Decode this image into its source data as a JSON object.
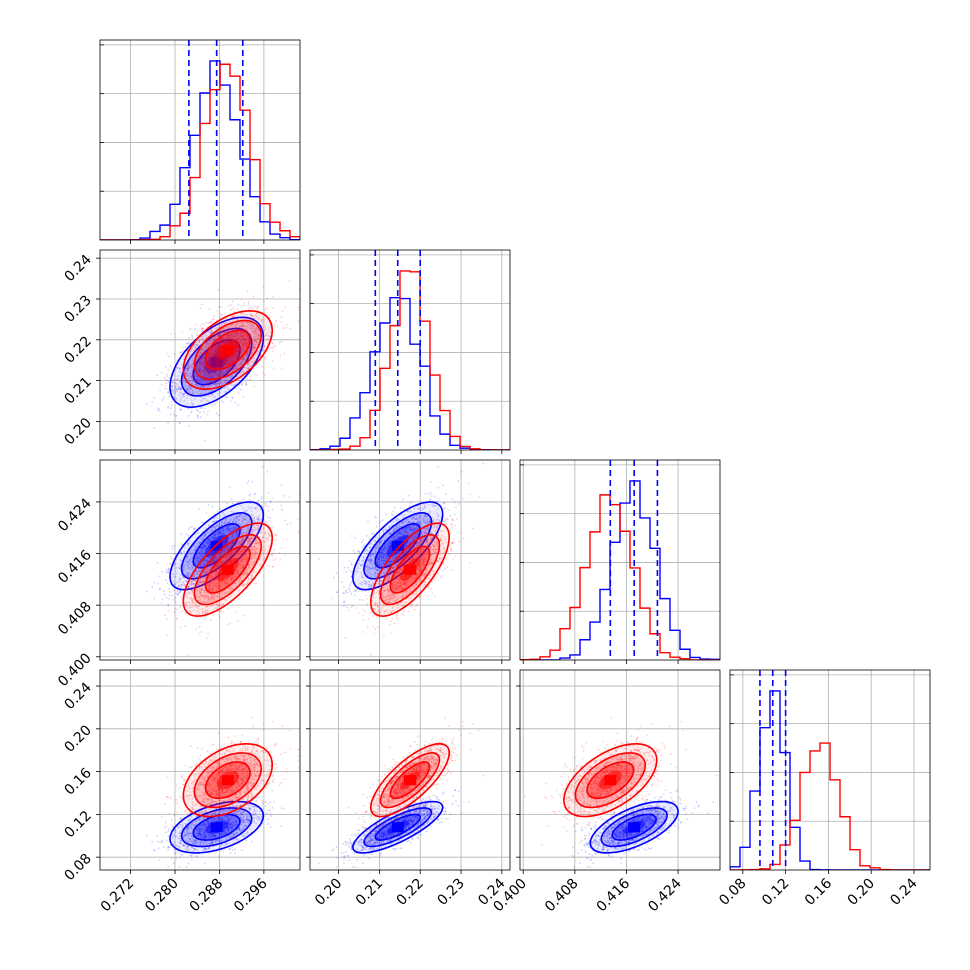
{
  "chart_data": {
    "type": "corner",
    "parameters": [
      {
        "range": [
          0.2665,
          0.3025
        ],
        "ticks": [
          "0.272",
          "0.280",
          "0.288",
          "0.296"
        ],
        "tick_values": [
          0.272,
          0.28,
          0.288,
          0.296
        ]
      },
      {
        "range": [
          0.193,
          0.242
        ],
        "ticks": [
          "0.20",
          "0.21",
          "0.22",
          "0.23",
          "0.24"
        ],
        "tick_values": [
          0.2,
          0.21,
          0.22,
          0.23,
          0.24
        ]
      },
      {
        "range": [
          0.3995,
          0.4305
        ],
        "ticks": [
          "0.400",
          "0.408",
          "0.416",
          "0.424"
        ],
        "tick_values": [
          0.4,
          0.408,
          0.416,
          0.424
        ]
      },
      {
        "range": [
          0.068,
          0.255
        ],
        "ticks": [
          "0.08",
          "0.12",
          "0.16",
          "0.20",
          "0.24"
        ],
        "tick_values": [
          0.08,
          0.12,
          0.16,
          0.2,
          0.24
        ]
      }
    ],
    "series": [
      {
        "color": "#0000ff",
        "mean": [
          0.2875,
          0.2145,
          0.4172,
          0.108
        ],
        "std": [
          0.0042,
          0.0055,
          0.0034,
          0.012
        ],
        "corr": [
          [
            1,
            0.55,
            0.7,
            0.45
          ],
          [
            0.55,
            1,
            0.72,
            0.78
          ],
          [
            0.7,
            0.72,
            1,
            0.62
          ],
          [
            0.45,
            0.78,
            0.62,
            1
          ]
        ],
        "quantiles": [
          [
            0.2825,
            0.2875,
            0.2922
          ],
          [
            0.209,
            0.2145,
            0.22
          ],
          [
            0.4135,
            0.4172,
            0.4208
          ],
          [
            0.096,
            0.108,
            0.12
          ]
        ]
      },
      {
        "color": "#ff0000",
        "mean": [
          0.2895,
          0.2175,
          0.4135,
          0.152
        ],
        "std": [
          0.004,
          0.0048,
          0.0036,
          0.017
        ],
        "corr": [
          [
            1,
            0.5,
            0.68,
            0.42
          ],
          [
            0.5,
            1,
            0.7,
            0.75
          ],
          [
            0.68,
            0.7,
            1,
            0.55
          ],
          [
            0.42,
            0.75,
            0.55,
            1
          ]
        ],
        "quantiles": [
          [
            0.2855,
            0.2895,
            0.2935
          ],
          [
            0.2127,
            0.2175,
            0.2223
          ],
          [
            0.4099,
            0.4135,
            0.4171
          ],
          [
            0.135,
            0.152,
            0.169
          ]
        ]
      }
    ],
    "quantile_line_color": "#0000ff",
    "grid": true,
    "title": "",
    "legend": "none"
  }
}
